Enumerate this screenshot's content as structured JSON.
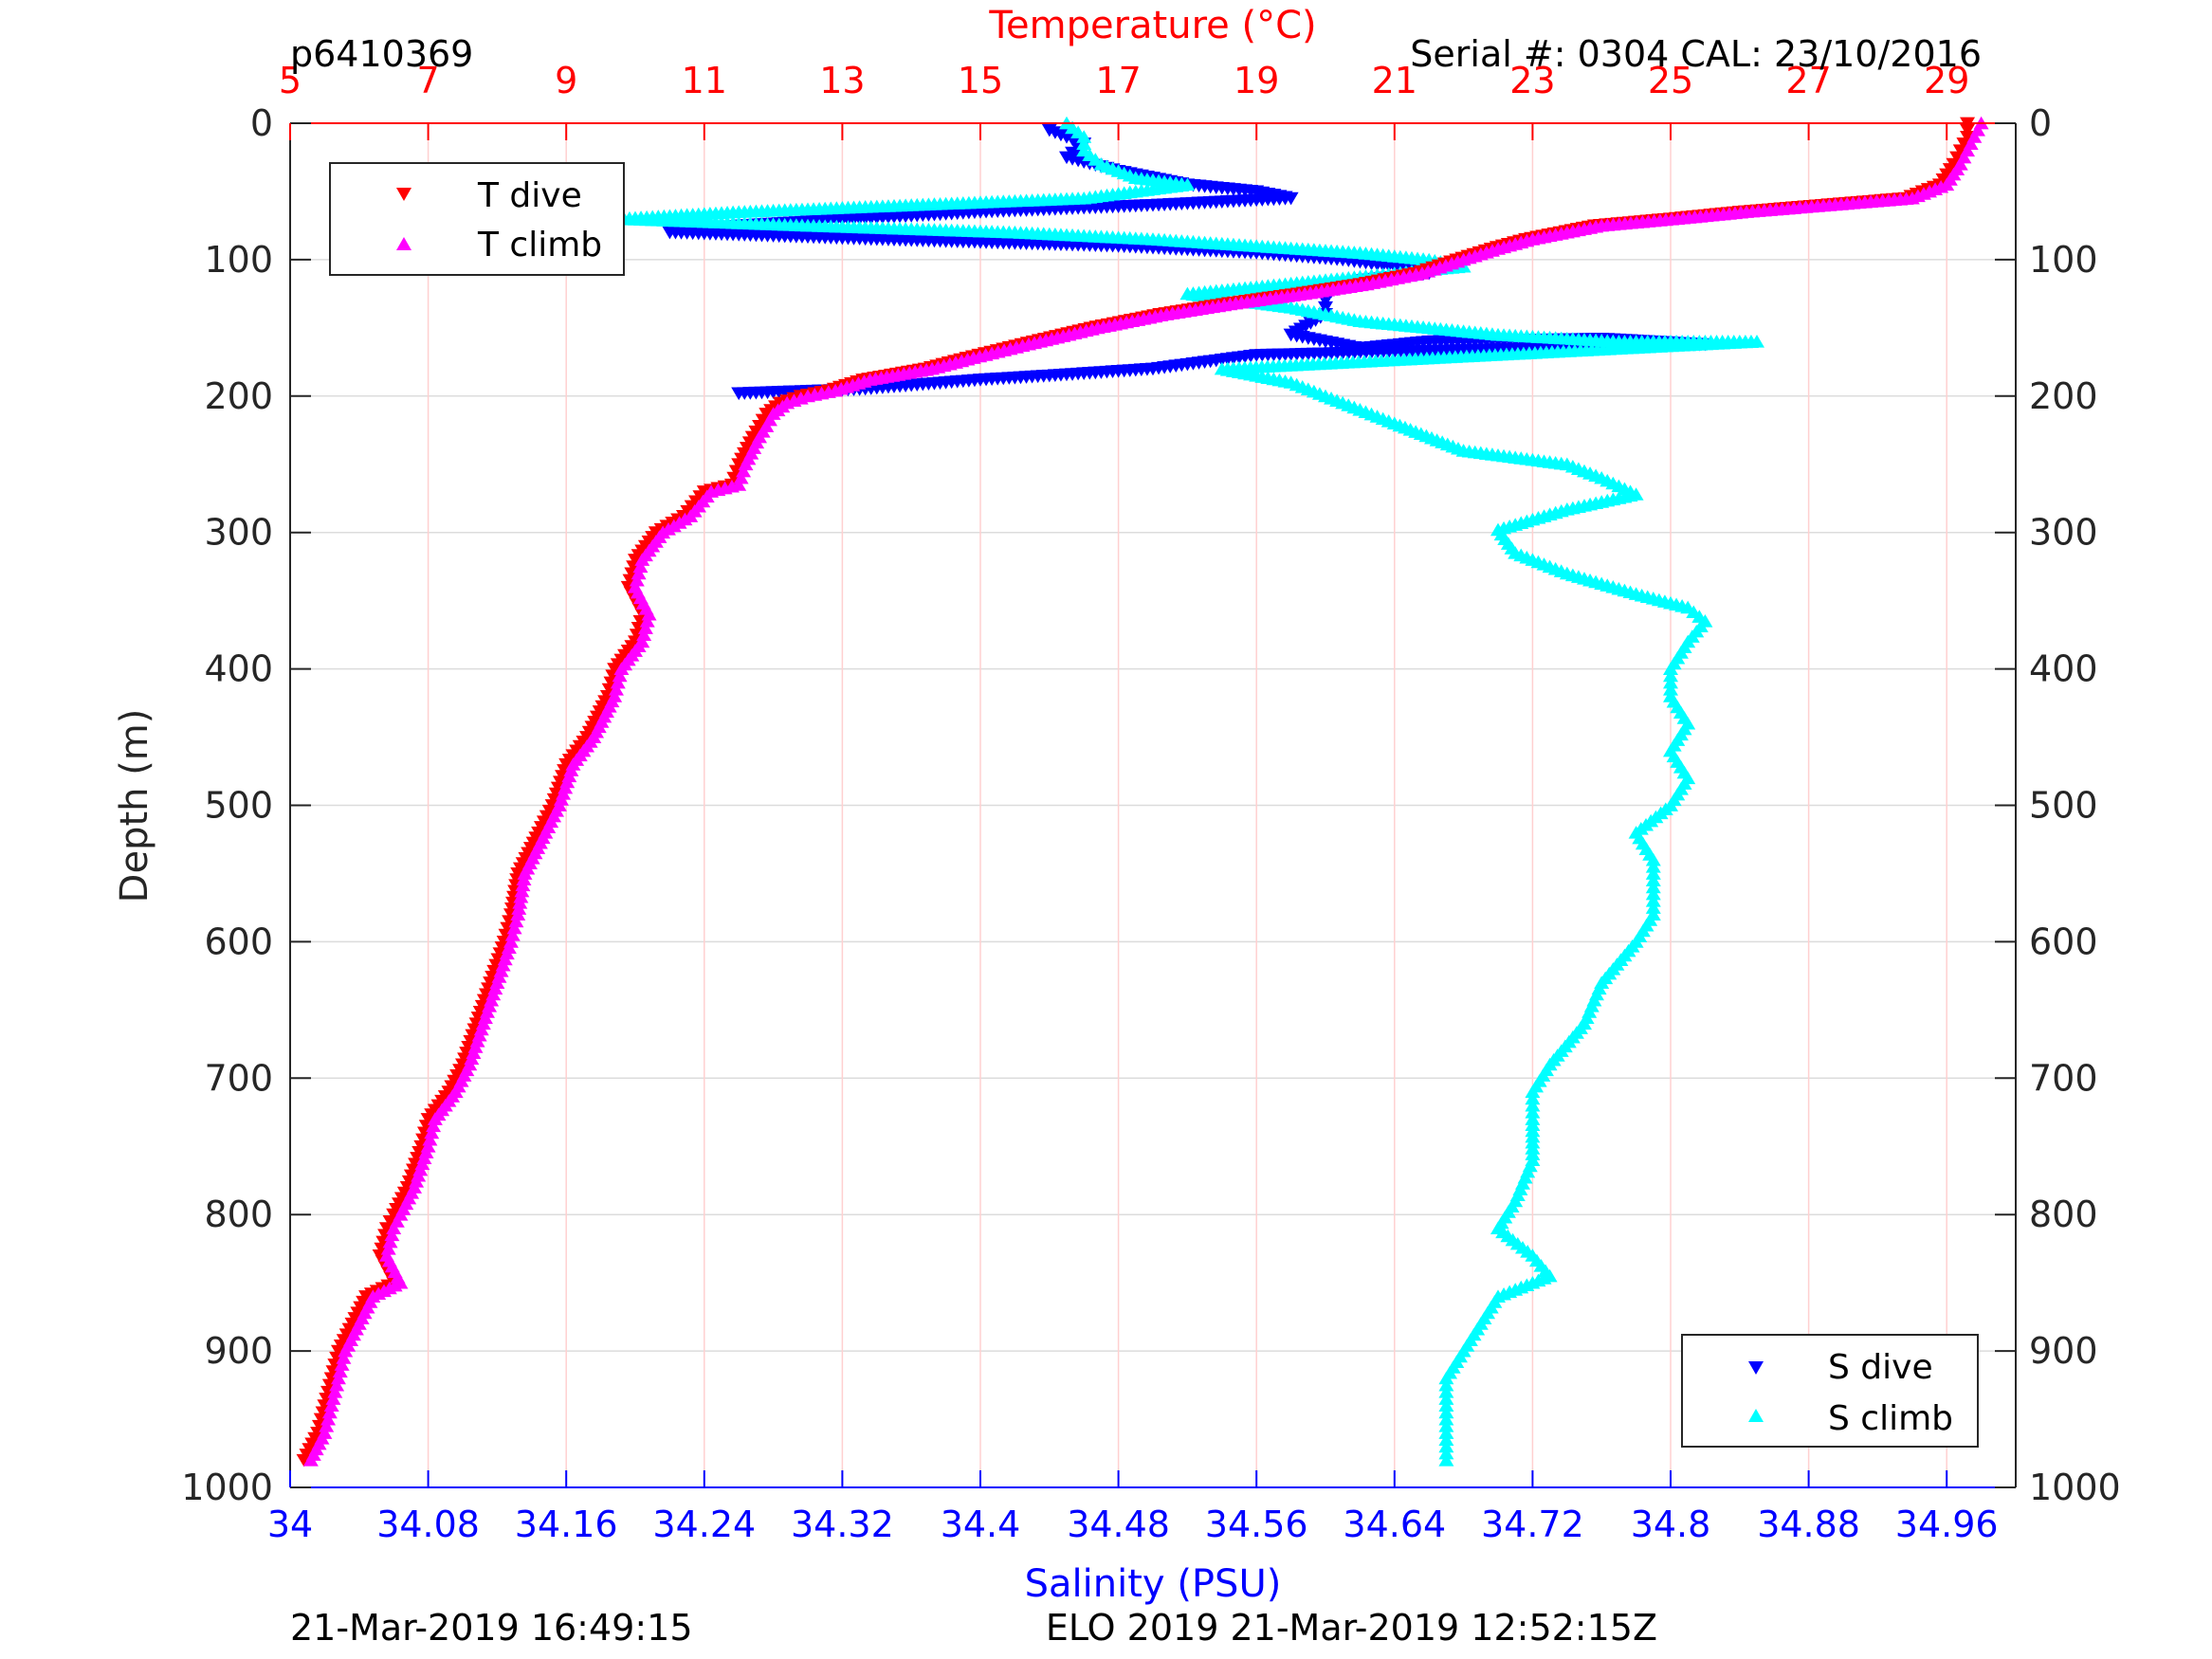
{
  "header": {
    "left_note": "p6410369",
    "right_note": "Serial #: 0304  CAL: 23/10/2016"
  },
  "footer": {
    "left_note": "21-Mar-2019 16:49:15",
    "center_note": "ELO 2019 21-Mar-2019 12:52:15Z"
  },
  "chart_data": {
    "type": "scatter",
    "title": "",
    "ylabel": "Depth (m)",
    "x_top_label": "Temperature (°C)",
    "x_bottom_label": "Salinity (PSU)",
    "ylim": [
      1000,
      0
    ],
    "temperature_xlim": [
      5,
      30
    ],
    "salinity_xlim": [
      34.0,
      35.0
    ],
    "y_ticks": [
      0,
      100,
      200,
      300,
      400,
      500,
      600,
      700,
      800,
      900,
      1000
    ],
    "temperature_ticks": [
      5,
      7,
      9,
      11,
      13,
      15,
      17,
      19,
      21,
      23,
      25,
      27,
      29
    ],
    "salinity_ticks": [
      "34",
      "34.08",
      "34.16",
      "34.24",
      "34.32",
      "34.4",
      "34.48",
      "34.56",
      "34.64",
      "34.72",
      "34.8",
      "34.88",
      "34.96"
    ],
    "grid": true,
    "colors": {
      "t_dive": "#ff0000",
      "t_climb": "#ff00ff",
      "s_dive": "#0000ff",
      "s_climb": "#00ffff",
      "temperature_axis": "#ff0000",
      "salinity_axis": "#0000ff"
    },
    "legend_temperature": {
      "placement": "top-left",
      "entries": [
        "T dive",
        "T climb"
      ]
    },
    "legend_salinity": {
      "placement": "bottom-right",
      "entries": [
        "S dive",
        "S climb"
      ]
    },
    "series": [
      {
        "name": "T dive",
        "axis": "temperature",
        "marker": "triangle-down",
        "points": [
          [
            29.3,
            0
          ],
          [
            29.3,
            10
          ],
          [
            29.2,
            20
          ],
          [
            29.1,
            30
          ],
          [
            28.9,
            45
          ],
          [
            28.4,
            55
          ],
          [
            27.2,
            60
          ],
          [
            26.0,
            65
          ],
          [
            25.0,
            70
          ],
          [
            23.9,
            75
          ],
          [
            23.4,
            80
          ],
          [
            22.9,
            85
          ],
          [
            22.4,
            92
          ],
          [
            21.9,
            100
          ],
          [
            21.3,
            110
          ],
          [
            20.5,
            118
          ],
          [
            19.6,
            125
          ],
          [
            18.6,
            132
          ],
          [
            17.6,
            140
          ],
          [
            16.6,
            150
          ],
          [
            15.6,
            162
          ],
          [
            14.8,
            172
          ],
          [
            14.2,
            180
          ],
          [
            13.3,
            188
          ],
          [
            12.8,
            196
          ],
          [
            12.4,
            200
          ],
          [
            12.1,
            205
          ],
          [
            11.9,
            213
          ],
          [
            11.8,
            222
          ],
          [
            11.7,
            230
          ],
          [
            11.5,
            250
          ],
          [
            11.4,
            265
          ],
          [
            11.0,
            270
          ],
          [
            10.7,
            288
          ],
          [
            10.3,
            300
          ],
          [
            10.0,
            320
          ],
          [
            9.9,
            340
          ],
          [
            10.1,
            360
          ],
          [
            10.0,
            380
          ],
          [
            9.7,
            400
          ],
          [
            9.6,
            420
          ],
          [
            9.3,
            450
          ],
          [
            9.0,
            470
          ],
          [
            8.8,
            500
          ],
          [
            8.6,
            520
          ],
          [
            8.3,
            550
          ],
          [
            8.2,
            580
          ],
          [
            8.1,
            600
          ],
          [
            7.9,
            630
          ],
          [
            7.7,
            660
          ],
          [
            7.5,
            690
          ],
          [
            7.3,
            710
          ],
          [
            7.0,
            730
          ],
          [
            6.9,
            750
          ],
          [
            6.7,
            780
          ],
          [
            6.5,
            800
          ],
          [
            6.4,
            810
          ],
          [
            6.3,
            830
          ],
          [
            6.5,
            850
          ],
          [
            6.1,
            860
          ],
          [
            5.9,
            880
          ],
          [
            5.7,
            900
          ],
          [
            5.6,
            920
          ],
          [
            5.5,
            940
          ],
          [
            5.4,
            960
          ],
          [
            5.2,
            980
          ]
        ]
      },
      {
        "name": "T climb",
        "axis": "temperature",
        "marker": "triangle-up",
        "points": [
          [
            29.5,
            0
          ],
          [
            29.4,
            10
          ],
          [
            29.3,
            20
          ],
          [
            29.2,
            30
          ],
          [
            29.0,
            45
          ],
          [
            28.5,
            55
          ],
          [
            27.3,
            60
          ],
          [
            26.1,
            65
          ],
          [
            25.1,
            70
          ],
          [
            24.0,
            75
          ],
          [
            23.5,
            80
          ],
          [
            23.0,
            85
          ],
          [
            22.5,
            92
          ],
          [
            22.0,
            100
          ],
          [
            21.4,
            110
          ],
          [
            20.6,
            118
          ],
          [
            19.7,
            125
          ],
          [
            18.7,
            132
          ],
          [
            17.7,
            140
          ],
          [
            16.7,
            150
          ],
          [
            15.7,
            162
          ],
          [
            14.9,
            172
          ],
          [
            14.3,
            180
          ],
          [
            13.4,
            188
          ],
          [
            12.9,
            196
          ],
          [
            12.5,
            200
          ],
          [
            12.2,
            205
          ],
          [
            12.0,
            213
          ],
          [
            11.9,
            222
          ],
          [
            11.8,
            230
          ],
          [
            11.6,
            250
          ],
          [
            11.5,
            265
          ],
          [
            11.1,
            270
          ],
          [
            10.8,
            288
          ],
          [
            10.4,
            300
          ],
          [
            10.1,
            320
          ],
          [
            10.0,
            340
          ],
          [
            10.2,
            360
          ],
          [
            10.1,
            380
          ],
          [
            9.8,
            400
          ],
          [
            9.7,
            420
          ],
          [
            9.4,
            450
          ],
          [
            9.1,
            470
          ],
          [
            8.9,
            500
          ],
          [
            8.7,
            520
          ],
          [
            8.4,
            550
          ],
          [
            8.3,
            580
          ],
          [
            8.2,
            600
          ],
          [
            8.0,
            630
          ],
          [
            7.8,
            660
          ],
          [
            7.6,
            690
          ],
          [
            7.4,
            710
          ],
          [
            7.1,
            730
          ],
          [
            7.0,
            750
          ],
          [
            6.8,
            780
          ],
          [
            6.6,
            800
          ],
          [
            6.5,
            810
          ],
          [
            6.4,
            830
          ],
          [
            6.6,
            850
          ],
          [
            6.2,
            860
          ],
          [
            6.0,
            880
          ],
          [
            5.8,
            900
          ],
          [
            5.7,
            920
          ],
          [
            5.6,
            940
          ],
          [
            5.5,
            960
          ],
          [
            5.3,
            980
          ]
        ]
      },
      {
        "name": "S dive",
        "axis": "salinity",
        "marker": "triangle-down",
        "points": [
          [
            34.44,
            5
          ],
          [
            34.46,
            15
          ],
          [
            34.45,
            25
          ],
          [
            34.48,
            35
          ],
          [
            34.52,
            45
          ],
          [
            34.56,
            50
          ],
          [
            34.58,
            55
          ],
          [
            34.5,
            60
          ],
          [
            34.4,
            65
          ],
          [
            34.33,
            70
          ],
          [
            34.26,
            75
          ],
          [
            34.22,
            80
          ],
          [
            34.34,
            85
          ],
          [
            34.48,
            90
          ],
          [
            34.56,
            95
          ],
          [
            34.61,
            100
          ],
          [
            34.64,
            105
          ],
          [
            34.66,
            110
          ],
          [
            34.62,
            115
          ],
          [
            34.6,
            125
          ],
          [
            34.6,
            140
          ],
          [
            34.58,
            155
          ],
          [
            34.62,
            165
          ],
          [
            34.66,
            160
          ],
          [
            34.76,
            158
          ],
          [
            34.82,
            162
          ],
          [
            34.56,
            170
          ],
          [
            34.5,
            180
          ],
          [
            34.44,
            185
          ],
          [
            34.4,
            188
          ],
          [
            34.36,
            192
          ],
          [
            34.33,
            195
          ],
          [
            34.26,
            198
          ]
        ]
      },
      {
        "name": "S climb",
        "axis": "salinity",
        "marker": "triangle-up",
        "points": [
          [
            34.45,
            0
          ],
          [
            34.46,
            10
          ],
          [
            34.46,
            20
          ],
          [
            34.47,
            30
          ],
          [
            34.49,
            40
          ],
          [
            34.52,
            45
          ],
          [
            34.46,
            55
          ],
          [
            34.36,
            60
          ],
          [
            34.26,
            65
          ],
          [
            34.19,
            70
          ],
          [
            34.3,
            75
          ],
          [
            34.42,
            80
          ],
          [
            34.5,
            85
          ],
          [
            34.56,
            90
          ],
          [
            34.62,
            95
          ],
          [
            34.66,
            100
          ],
          [
            34.68,
            105
          ],
          [
            34.64,
            110
          ],
          [
            34.56,
            120
          ],
          [
            34.52,
            125
          ],
          [
            34.58,
            135
          ],
          [
            34.62,
            145
          ],
          [
            34.7,
            155
          ],
          [
            34.77,
            160
          ],
          [
            34.85,
            160
          ],
          [
            34.54,
            180
          ],
          [
            34.58,
            190
          ],
          [
            34.61,
            205
          ],
          [
            34.64,
            220
          ],
          [
            34.68,
            240
          ],
          [
            34.74,
            250
          ],
          [
            34.76,
            260
          ],
          [
            34.78,
            272
          ],
          [
            34.74,
            283
          ],
          [
            34.7,
            298
          ],
          [
            34.71,
            315
          ],
          [
            34.74,
            330
          ],
          [
            34.78,
            345
          ],
          [
            34.81,
            355
          ],
          [
            34.82,
            365
          ],
          [
            34.81,
            380
          ],
          [
            34.8,
            400
          ],
          [
            34.8,
            420
          ],
          [
            34.81,
            440
          ],
          [
            34.8,
            460
          ],
          [
            34.81,
            480
          ],
          [
            34.8,
            500
          ],
          [
            34.78,
            520
          ],
          [
            34.79,
            540
          ],
          [
            34.79,
            560
          ],
          [
            34.79,
            580
          ],
          [
            34.78,
            600
          ],
          [
            34.76,
            630
          ],
          [
            34.75,
            660
          ],
          [
            34.73,
            690
          ],
          [
            34.72,
            710
          ],
          [
            34.72,
            730
          ],
          [
            34.72,
            760
          ],
          [
            34.71,
            790
          ],
          [
            34.7,
            810
          ],
          [
            34.72,
            830
          ],
          [
            34.73,
            845
          ],
          [
            34.7,
            860
          ],
          [
            34.69,
            880
          ],
          [
            34.68,
            900
          ],
          [
            34.67,
            920
          ],
          [
            34.67,
            940
          ],
          [
            34.67,
            960
          ],
          [
            34.67,
            980
          ]
        ]
      }
    ]
  }
}
